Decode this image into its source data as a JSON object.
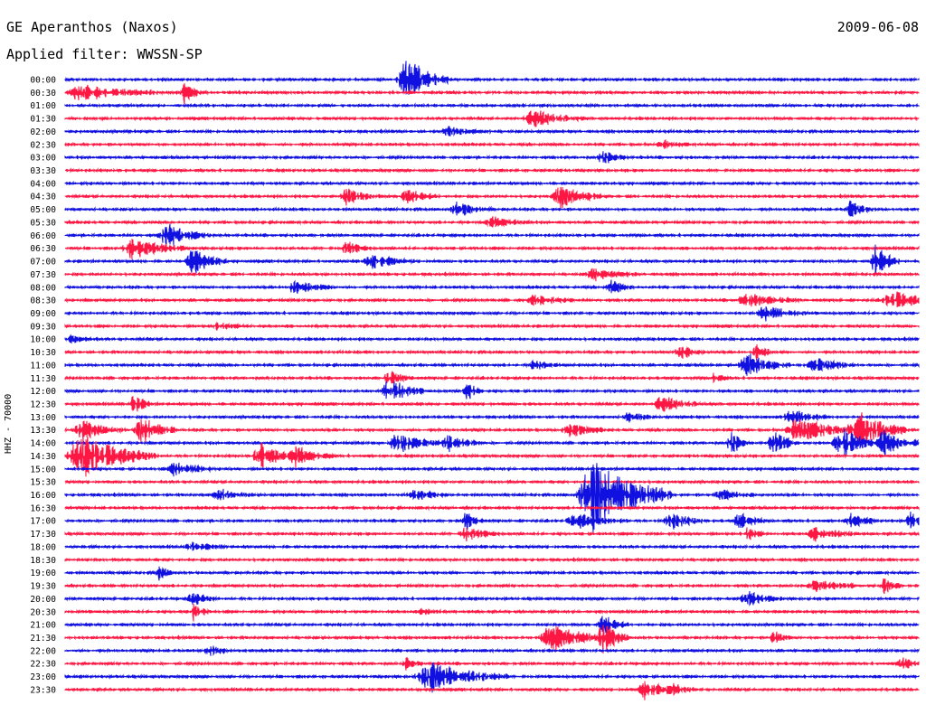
{
  "header": {
    "station": "GE Aperanthos (Naxos)",
    "date": "2009-06-08",
    "filter": "Applied filter: WWSSN-SP"
  },
  "chart_data": {
    "type": "line",
    "title": "GE Aperanthos (Naxos)",
    "subtitle": "Applied filter: WWSSN-SP",
    "ylabel": "HHZ - 70000",
    "series_colors": [
      "#1010e0",
      "#ff1744"
    ],
    "rows": [
      {
        "label": "00:00",
        "events": [
          [
            0.4,
            2.6,
            0.05
          ]
        ]
      },
      {
        "label": "00:30",
        "events": [
          [
            0.02,
            1.0,
            0.09
          ],
          [
            0.14,
            1.2,
            0.02
          ]
        ]
      },
      {
        "label": "01:00",
        "events": []
      },
      {
        "label": "01:30",
        "events": [
          [
            0.55,
            1.0,
            0.06
          ]
        ]
      },
      {
        "label": "02:00",
        "events": [
          [
            0.45,
            0.5,
            0.05
          ]
        ]
      },
      {
        "label": "02:30",
        "events": [
          [
            0.7,
            0.4,
            0.03
          ]
        ]
      },
      {
        "label": "03:00",
        "events": [
          [
            0.63,
            0.8,
            0.03
          ]
        ]
      },
      {
        "label": "03:30",
        "events": []
      },
      {
        "label": "04:00",
        "events": []
      },
      {
        "label": "04:30",
        "events": [
          [
            0.33,
            1.0,
            0.04
          ],
          [
            0.4,
            0.9,
            0.04
          ],
          [
            0.58,
            1.3,
            0.05
          ]
        ]
      },
      {
        "label": "05:00",
        "events": [
          [
            0.46,
            0.9,
            0.04
          ],
          [
            0.92,
            0.9,
            0.03
          ]
        ]
      },
      {
        "label": "05:30",
        "events": [
          [
            0.5,
            0.6,
            0.05
          ]
        ]
      },
      {
        "label": "06:00",
        "events": [
          [
            0.12,
            1.4,
            0.05
          ]
        ]
      },
      {
        "label": "06:30",
        "events": [
          [
            0.08,
            1.3,
            0.06
          ],
          [
            0.33,
            0.8,
            0.03
          ]
        ]
      },
      {
        "label": "07:00",
        "events": [
          [
            0.15,
            1.6,
            0.04
          ],
          [
            0.36,
            0.8,
            0.05
          ],
          [
            0.95,
            2.0,
            0.03
          ]
        ]
      },
      {
        "label": "07:30",
        "events": [
          [
            0.62,
            0.7,
            0.05
          ]
        ]
      },
      {
        "label": "08:00",
        "events": [
          [
            0.27,
            0.8,
            0.05
          ],
          [
            0.64,
            0.8,
            0.03
          ]
        ]
      },
      {
        "label": "08:30",
        "events": [
          [
            0.55,
            0.6,
            0.05
          ],
          [
            0.8,
            0.8,
            0.06
          ],
          [
            0.97,
            1.0,
            0.06
          ]
        ]
      },
      {
        "label": "09:00",
        "events": [
          [
            0.82,
            0.9,
            0.05
          ]
        ]
      },
      {
        "label": "09:30",
        "events": [
          [
            0.18,
            0.4,
            0.04
          ]
        ]
      },
      {
        "label": "10:00",
        "events": [
          [
            0.01,
            0.6,
            0.03
          ]
        ]
      },
      {
        "label": "10:30",
        "events": [
          [
            0.72,
            1.1,
            0.03
          ],
          [
            0.81,
            1.2,
            0.02
          ]
        ]
      },
      {
        "label": "11:00",
        "events": [
          [
            0.55,
            0.6,
            0.03
          ],
          [
            0.8,
            1.3,
            0.05
          ],
          [
            0.88,
            0.8,
            0.05
          ]
        ]
      },
      {
        "label": "11:30",
        "events": [
          [
            0.38,
            0.8,
            0.03
          ],
          [
            0.76,
            0.6,
            0.02
          ]
        ]
      },
      {
        "label": "12:00",
        "events": [
          [
            0.38,
            1.6,
            0.04
          ],
          [
            0.47,
            1.2,
            0.02
          ]
        ]
      },
      {
        "label": "12:30",
        "events": [
          [
            0.08,
            1.5,
            0.02
          ],
          [
            0.7,
            0.9,
            0.05
          ]
        ]
      },
      {
        "label": "13:00",
        "events": [
          [
            0.66,
            0.7,
            0.03
          ],
          [
            0.85,
            0.9,
            0.04
          ]
        ]
      },
      {
        "label": "13:30",
        "events": [
          [
            0.02,
            1.1,
            0.05
          ],
          [
            0.09,
            1.8,
            0.04
          ],
          [
            0.59,
            1.0,
            0.04
          ],
          [
            0.86,
            1.4,
            0.07
          ],
          [
            0.93,
            2.0,
            0.06
          ]
        ]
      },
      {
        "label": "14:00",
        "events": [
          [
            0.39,
            1.2,
            0.05
          ],
          [
            0.45,
            1.0,
            0.04
          ],
          [
            0.78,
            1.6,
            0.02
          ],
          [
            0.83,
            1.4,
            0.03
          ],
          [
            0.91,
            1.7,
            0.05
          ],
          [
            0.96,
            1.5,
            0.04
          ]
        ]
      },
      {
        "label": "14:30",
        "events": [
          [
            0.02,
            2.4,
            0.09
          ],
          [
            0.23,
            1.4,
            0.05
          ],
          [
            0.27,
            1.0,
            0.05
          ]
        ]
      },
      {
        "label": "15:00",
        "events": [
          [
            0.13,
            1.0,
            0.04
          ]
        ]
      },
      {
        "label": "15:30",
        "events": []
      },
      {
        "label": "16:00",
        "events": [
          [
            0.62,
            4.5,
            0.09
          ],
          [
            0.18,
            0.7,
            0.04
          ],
          [
            0.41,
            0.6,
            0.04
          ],
          [
            0.77,
            0.6,
            0.05
          ]
        ]
      },
      {
        "label": "16:30",
        "events": []
      },
      {
        "label": "17:00",
        "events": [
          [
            0.47,
            1.2,
            0.02
          ],
          [
            0.6,
            0.8,
            0.06
          ],
          [
            0.71,
            1.0,
            0.04
          ],
          [
            0.79,
            1.2,
            0.03
          ],
          [
            0.92,
            1.0,
            0.03
          ],
          [
            0.99,
            1.2,
            0.02
          ]
        ]
      },
      {
        "label": "17:30",
        "events": [
          [
            0.47,
            0.8,
            0.04
          ],
          [
            0.8,
            0.9,
            0.02
          ],
          [
            0.88,
            0.8,
            0.05
          ]
        ]
      },
      {
        "label": "18:00",
        "events": [
          [
            0.15,
            0.5,
            0.04
          ]
        ]
      },
      {
        "label": "18:30",
        "events": []
      },
      {
        "label": "19:00",
        "events": [
          [
            0.11,
            0.8,
            0.02
          ]
        ]
      },
      {
        "label": "19:30",
        "events": [
          [
            0.88,
            0.7,
            0.05
          ],
          [
            0.96,
            1.0,
            0.02
          ]
        ]
      },
      {
        "label": "20:00",
        "events": [
          [
            0.15,
            0.7,
            0.03
          ],
          [
            0.8,
            0.8,
            0.04
          ]
        ]
      },
      {
        "label": "20:30",
        "events": [
          [
            0.15,
            1.0,
            0.02
          ],
          [
            0.42,
            0.7,
            0.02
          ]
        ]
      },
      {
        "label": "21:00",
        "events": [
          [
            0.63,
            1.2,
            0.03
          ]
        ]
      },
      {
        "label": "21:30",
        "events": [
          [
            0.57,
            1.8,
            0.06
          ],
          [
            0.63,
            2.0,
            0.03
          ],
          [
            0.83,
            0.9,
            0.02
          ]
        ]
      },
      {
        "label": "22:00",
        "events": [
          [
            0.17,
            0.6,
            0.03
          ]
        ]
      },
      {
        "label": "22:30",
        "events": [
          [
            0.4,
            0.7,
            0.02
          ],
          [
            0.98,
            0.8,
            0.03
          ]
        ]
      },
      {
        "label": "23:00",
        "events": [
          [
            0.43,
            1.8,
            0.09
          ]
        ]
      },
      {
        "label": "23:30",
        "events": [
          [
            0.68,
            1.2,
            0.04
          ],
          [
            0.71,
            0.9,
            0.03
          ]
        ]
      }
    ]
  }
}
